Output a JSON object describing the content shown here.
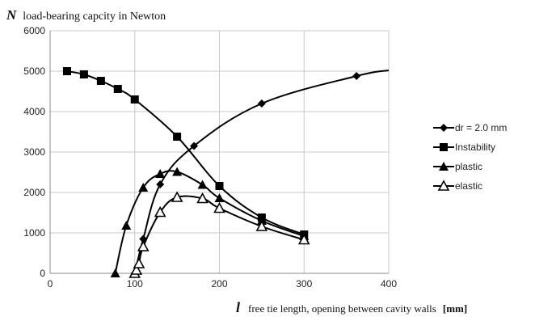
{
  "chart_data": {
    "type": "line",
    "ylabel_symbol": "N",
    "ylabel": "load-bearing capcity in Newton",
    "xlabel_symbol": "l",
    "xlabel": "free tie length, opening between cavity walls",
    "xlabel_unit": "[mm]",
    "xlim": [
      0,
      400
    ],
    "ylim": [
      0,
      6000
    ],
    "xticks": [
      0,
      100,
      200,
      300,
      400
    ],
    "yticks": [
      0,
      1000,
      2000,
      3000,
      4000,
      5000,
      6000
    ],
    "grid": true,
    "legend_position": "right",
    "series": [
      {
        "name": "dr = 2.0 mm",
        "marker": "diamond",
        "x": [
          100,
          110,
          130,
          170,
          250,
          362,
          400
        ],
        "y": [
          0,
          850,
          2200,
          3150,
          4200,
          4880,
          5020
        ],
        "marker_mask": [
          true,
          true,
          true,
          true,
          true,
          true,
          false
        ]
      },
      {
        "name": "Instability",
        "marker": "square",
        "x": [
          20,
          40,
          60,
          80,
          100,
          150,
          200,
          250,
          300
        ],
        "y": [
          5000,
          4920,
          4760,
          4560,
          4300,
          3380,
          2160,
          1380,
          960
        ],
        "marker_mask": [
          true,
          true,
          true,
          true,
          true,
          true,
          true,
          true,
          true
        ]
      },
      {
        "name": "plastic",
        "marker": "triangle",
        "x": [
          77,
          90,
          110,
          130,
          150,
          180,
          200,
          250,
          300
        ],
        "y": [
          0,
          1180,
          2120,
          2460,
          2510,
          2190,
          1860,
          1300,
          920
        ],
        "marker_mask": [
          true,
          true,
          true,
          true,
          true,
          true,
          true,
          true,
          true
        ]
      },
      {
        "name": "elastic",
        "marker": "triangle-open",
        "x": [
          100,
          102,
          105,
          110,
          130,
          150,
          180,
          200,
          250,
          300
        ],
        "y": [
          0,
          80,
          240,
          660,
          1510,
          1880,
          1850,
          1610,
          1160,
          830
        ],
        "marker_mask": [
          true,
          true,
          true,
          true,
          true,
          true,
          true,
          true,
          true,
          true
        ]
      }
    ]
  }
}
